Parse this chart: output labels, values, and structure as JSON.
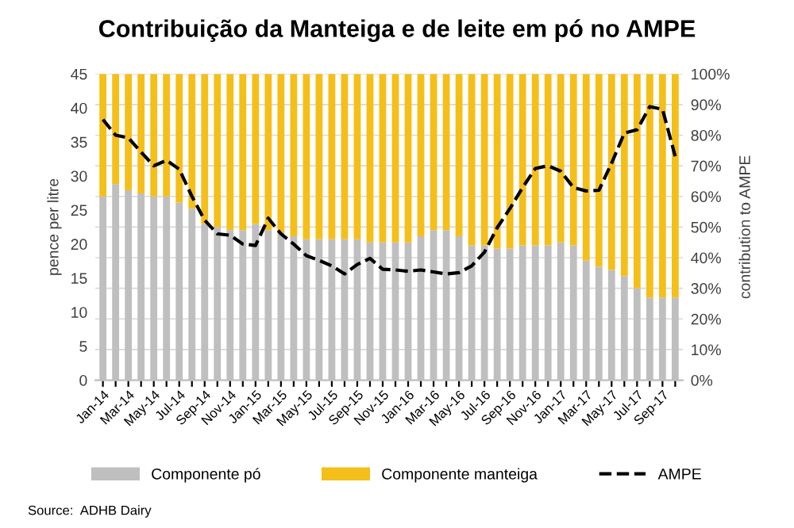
{
  "chart_data": {
    "type": "bar",
    "title": "Contribuição da Manteiga e de leite em pó no AMPE",
    "categories": [
      "Jan-14",
      null,
      "Mar-14",
      null,
      "May-14",
      null,
      "Jul-14",
      null,
      "Sep-14",
      null,
      "Nov-14",
      null,
      "Jan-15",
      null,
      "Mar-15",
      null,
      "May-15",
      null,
      "Jul-15",
      null,
      "Sep-15",
      null,
      "Nov-15",
      null,
      "Jan-16",
      null,
      "Mar-16",
      null,
      "May-16",
      null,
      "Jul-16",
      null,
      "Sep-16",
      null,
      "Nov-16",
      null,
      "Jan-17",
      null,
      "Mar-17",
      null,
      "May-17",
      null,
      "Jul-17",
      null,
      "Sep-17",
      null
    ],
    "stacked": true,
    "series": [
      {
        "name": "Componente pó",
        "color": "#bfbfbf",
        "axis": "y2",
        "values": [
          60,
          64,
          62,
          61,
          60,
          60,
          58,
          56,
          51,
          50,
          49,
          49,
          51,
          49,
          48,
          47,
          46,
          46,
          46,
          46,
          46,
          45,
          45,
          45,
          45,
          47,
          49,
          49,
          47,
          44,
          44,
          43,
          43,
          44,
          44,
          44,
          45,
          44,
          39,
          37,
          36,
          34,
          30,
          27,
          27,
          27
        ]
      },
      {
        "name": "Componente manteiga",
        "color": "#f5bf1a",
        "axis": "y2",
        "values": [
          40,
          36,
          38,
          39,
          40,
          40,
          42,
          44,
          49,
          50,
          51,
          51,
          49,
          51,
          52,
          53,
          54,
          54,
          54,
          54,
          54,
          55,
          55,
          55,
          55,
          53,
          51,
          51,
          53,
          56,
          56,
          57,
          57,
          56,
          56,
          56,
          55,
          56,
          61,
          63,
          64,
          66,
          70,
          73,
          73,
          73
        ]
      },
      {
        "name": "AMPE",
        "type": "line",
        "color": "#000000",
        "line_style": "dashed",
        "marker": "none",
        "values": [
          38.3,
          36,
          35.6,
          33.5,
          31.5,
          32.3,
          31,
          27,
          23.5,
          21.5,
          21.3,
          20,
          19.8,
          23.8,
          21.5,
          20,
          18.3,
          17.6,
          16.8,
          15.6,
          17,
          17.9,
          16.3,
          16.2,
          16,
          16.2,
          15.9,
          15.6,
          15.8,
          16.8,
          18.8,
          22.4,
          25.2,
          28.3,
          31.1,
          31.5,
          30.7,
          28.3,
          27.8,
          27.9,
          31.9,
          36.3,
          36.8,
          40.2,
          39.8,
          32.9
        ]
      }
    ],
    "ylabel": "pence per litre",
    "y2label": "contribution to AMPE",
    "ylim": [
      0,
      45
    ],
    "yticks": [
      0,
      5,
      10,
      15,
      20,
      25,
      30,
      35,
      40,
      45
    ],
    "y2lim": [
      0,
      100
    ],
    "y2ticks": [
      {
        "value": 0,
        "label": "0%"
      },
      {
        "value": 10,
        "label": "10%"
      },
      {
        "value": 20,
        "label": "20%"
      },
      {
        "value": 30,
        "label": "30%"
      },
      {
        "value": 40,
        "label": "40%"
      },
      {
        "value": 50,
        "label": "50%"
      },
      {
        "value": 60,
        "label": "60%"
      },
      {
        "value": 70,
        "label": "70%"
      },
      {
        "value": 80,
        "label": "80%"
      },
      {
        "value": 90,
        "label": "90%"
      },
      {
        "value": 100,
        "label": "100%"
      }
    ],
    "grid": "y",
    "legend": "bottom",
    "annotations": [
      "Source:  ADHB Dairy"
    ]
  }
}
